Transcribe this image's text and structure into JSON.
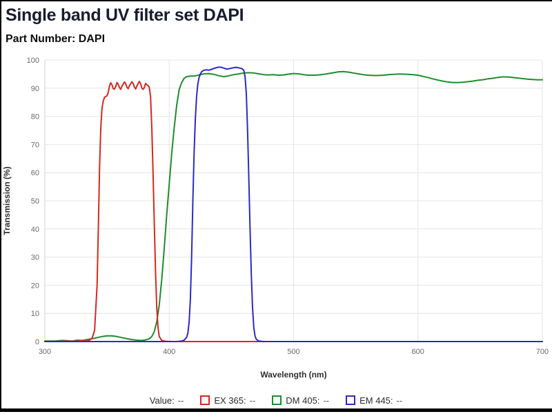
{
  "header": {
    "title": "Single band UV filter set DAPI",
    "subtitle": "Part Number: DAPI"
  },
  "legend": {
    "value_label": "Value:",
    "value": "--",
    "items": [
      {
        "label": "EX 365:",
        "value": "--",
        "color": "#d7271d"
      },
      {
        "label": "DM 405:",
        "value": "--",
        "color": "#1e8c2b"
      },
      {
        "label": "EM 445:",
        "value": "--",
        "color": "#2c28c9"
      }
    ]
  },
  "chart_data": {
    "type": "line",
    "title": "Single band UV filter set DAPI",
    "xlabel": "Wavelength (nm)",
    "ylabel": "Transmission (%)",
    "xlim": [
      300,
      700
    ],
    "ylim": [
      0,
      100
    ],
    "x_ticks": [
      300,
      400,
      500,
      600,
      700
    ],
    "y_ticks": [
      0,
      10,
      20,
      30,
      40,
      50,
      60,
      70,
      80,
      90,
      100
    ],
    "grid": true,
    "legend_position": "bottom",
    "grid_color": "#e4e4e4",
    "axis_color": "#d0d0d0",
    "tick_color": "#696969",
    "axis_label_color": "#2e2e2e",
    "series": [
      {
        "name": "DM 405",
        "color": "#1e8c2b",
        "points": [
          [
            300,
            0.2
          ],
          [
            308,
            0.2
          ],
          [
            314,
            0.4
          ],
          [
            318,
            0.3
          ],
          [
            322,
            0.2
          ],
          [
            326,
            0.5
          ],
          [
            330,
            0.4
          ],
          [
            334,
            0.7
          ],
          [
            338,
            1
          ],
          [
            342,
            1.4
          ],
          [
            346,
            1.8
          ],
          [
            350,
            2
          ],
          [
            354,
            2
          ],
          [
            358,
            1.8
          ],
          [
            362,
            1.4
          ],
          [
            366,
            1
          ],
          [
            370,
            0.7
          ],
          [
            374,
            0.5
          ],
          [
            378,
            0.4
          ],
          [
            381,
            0.6
          ],
          [
            384,
            1
          ],
          [
            386,
            1.8
          ],
          [
            388,
            3.5
          ],
          [
            390,
            7
          ],
          [
            392,
            13
          ],
          [
            394,
            22
          ],
          [
            396,
            33
          ],
          [
            398,
            45
          ],
          [
            400,
            56
          ],
          [
            402,
            67
          ],
          [
            404,
            76
          ],
          [
            406,
            84
          ],
          [
            408,
            89.5
          ],
          [
            410,
            92
          ],
          [
            412,
            93.5
          ],
          [
            414,
            94.1
          ],
          [
            417,
            94.3
          ],
          [
            420,
            94.3
          ],
          [
            424,
            94.7
          ],
          [
            428,
            95.1
          ],
          [
            432,
            95.2
          ],
          [
            436,
            94.9
          ],
          [
            440,
            94.4
          ],
          [
            444,
            94.1
          ],
          [
            448,
            94.4
          ],
          [
            452,
            94.8
          ],
          [
            456,
            95.1
          ],
          [
            460,
            95.4
          ],
          [
            464,
            95.5
          ],
          [
            468,
            95.4
          ],
          [
            472,
            95.1
          ],
          [
            476,
            94.8
          ],
          [
            480,
            94.7
          ],
          [
            484,
            94.8
          ],
          [
            488,
            94.6
          ],
          [
            492,
            94.7
          ],
          [
            496,
            95
          ],
          [
            500,
            95.2
          ],
          [
            504,
            95.1
          ],
          [
            508,
            94.8
          ],
          [
            512,
            94.6
          ],
          [
            516,
            94.6
          ],
          [
            520,
            94.7
          ],
          [
            524,
            94.9
          ],
          [
            528,
            95.2
          ],
          [
            532,
            95.5
          ],
          [
            536,
            95.8
          ],
          [
            540,
            95.9
          ],
          [
            544,
            95.7
          ],
          [
            548,
            95.4
          ],
          [
            552,
            95.1
          ],
          [
            556,
            94.8
          ],
          [
            560,
            94.6
          ],
          [
            564,
            94.5
          ],
          [
            568,
            94.5
          ],
          [
            572,
            94.6
          ],
          [
            576,
            94.8
          ],
          [
            580,
            94.9
          ],
          [
            584,
            95
          ],
          [
            588,
            95
          ],
          [
            592,
            94.9
          ],
          [
            596,
            94.8
          ],
          [
            600,
            94.6
          ],
          [
            604,
            94.2
          ],
          [
            608,
            93.8
          ],
          [
            612,
            93.3
          ],
          [
            616,
            92.9
          ],
          [
            620,
            92.5
          ],
          [
            624,
            92.2
          ],
          [
            628,
            92
          ],
          [
            632,
            92
          ],
          [
            636,
            92.1
          ],
          [
            640,
            92.3
          ],
          [
            644,
            92.5
          ],
          [
            648,
            92.8
          ],
          [
            652,
            93
          ],
          [
            656,
            93.3
          ],
          [
            660,
            93.5
          ],
          [
            664,
            93.8
          ],
          [
            668,
            94
          ],
          [
            672,
            94
          ],
          [
            676,
            93.8
          ],
          [
            680,
            93.6
          ],
          [
            684,
            93.4
          ],
          [
            688,
            93.2
          ],
          [
            692,
            93.1
          ],
          [
            696,
            93
          ],
          [
            700,
            93
          ]
        ]
      },
      {
        "name": "EX 365",
        "color": "#d7271d",
        "points": [
          [
            300,
            0
          ],
          [
            310,
            0
          ],
          [
            318,
            0.2
          ],
          [
            324,
            0.1
          ],
          [
            330,
            0.3
          ],
          [
            334,
            0.2
          ],
          [
            336,
            0.5
          ],
          [
            338,
            1.2
          ],
          [
            340,
            4
          ],
          [
            342,
            20
          ],
          [
            343,
            40
          ],
          [
            344,
            62
          ],
          [
            345,
            76
          ],
          [
            346,
            83
          ],
          [
            347,
            85.5
          ],
          [
            348,
            86.8
          ],
          [
            350,
            87.3
          ],
          [
            351,
            88.5
          ],
          [
            352,
            90.8
          ],
          [
            353,
            91.9
          ],
          [
            354,
            91.2
          ],
          [
            355,
            89.8
          ],
          [
            356,
            89.7
          ],
          [
            357,
            90.6
          ],
          [
            358,
            92
          ],
          [
            359,
            91.4
          ],
          [
            360,
            90.2
          ],
          [
            361,
            89.6
          ],
          [
            362,
            90.7
          ],
          [
            364,
            92.2
          ],
          [
            365,
            91.6
          ],
          [
            366,
            90.3
          ],
          [
            367,
            89.8
          ],
          [
            368,
            90.9
          ],
          [
            370,
            92.3
          ],
          [
            371,
            91.7
          ],
          [
            372,
            90.4
          ],
          [
            373,
            89.7
          ],
          [
            374,
            90.8
          ],
          [
            376,
            92.4
          ],
          [
            377,
            91.6
          ],
          [
            378,
            90
          ],
          [
            379,
            89.6
          ],
          [
            380,
            90.2
          ],
          [
            381,
            91.7
          ],
          [
            382,
            91.2
          ],
          [
            383,
            90.9
          ],
          [
            384,
            90.3
          ],
          [
            385,
            87
          ],
          [
            386,
            76
          ],
          [
            387,
            60
          ],
          [
            388,
            42
          ],
          [
            389,
            25
          ],
          [
            390,
            12
          ],
          [
            391,
            5
          ],
          [
            392,
            1.8
          ],
          [
            394,
            0.4
          ],
          [
            397,
            0.1
          ],
          [
            402,
            0
          ],
          [
            420,
            0
          ],
          [
            450,
            0
          ],
          [
            480,
            0
          ],
          [
            520,
            0
          ],
          [
            560,
            0
          ],
          [
            600,
            0
          ],
          [
            640,
            0
          ],
          [
            680,
            0
          ],
          [
            700,
            0
          ]
        ]
      },
      {
        "name": "EM 445",
        "color": "#2c28c9",
        "points": [
          [
            300,
            0
          ],
          [
            330,
            0
          ],
          [
            360,
            0
          ],
          [
            385,
            0
          ],
          [
            400,
            0
          ],
          [
            406,
            0
          ],
          [
            410,
            0.2
          ],
          [
            412,
            0.5
          ],
          [
            414,
            1.5
          ],
          [
            415,
            3
          ],
          [
            416,
            7
          ],
          [
            417,
            15
          ],
          [
            418,
            30
          ],
          [
            419,
            50
          ],
          [
            420,
            67
          ],
          [
            421,
            79
          ],
          [
            422,
            87
          ],
          [
            423,
            91.5
          ],
          [
            424,
            93.8
          ],
          [
            425,
            95
          ],
          [
            426,
            95.8
          ],
          [
            428,
            96.4
          ],
          [
            430,
            96.5
          ],
          [
            432,
            96.4
          ],
          [
            434,
            96.7
          ],
          [
            436,
            97
          ],
          [
            438,
            97.3
          ],
          [
            440,
            97.5
          ],
          [
            442,
            97.4
          ],
          [
            444,
            97.1
          ],
          [
            446,
            96.8
          ],
          [
            448,
            96.9
          ],
          [
            450,
            97.1
          ],
          [
            452,
            97.3
          ],
          [
            454,
            97.4
          ],
          [
            456,
            97.2
          ],
          [
            458,
            97
          ],
          [
            459,
            96.8
          ],
          [
            460,
            96.3
          ],
          [
            461,
            94
          ],
          [
            462,
            88
          ],
          [
            463,
            75
          ],
          [
            464,
            58
          ],
          [
            465,
            40
          ],
          [
            466,
            24
          ],
          [
            467,
            12
          ],
          [
            468,
            5
          ],
          [
            469,
            2
          ],
          [
            470,
            0.8
          ],
          [
            472,
            0.2
          ],
          [
            476,
            0
          ],
          [
            490,
            0
          ],
          [
            520,
            0
          ],
          [
            560,
            0
          ],
          [
            600,
            0
          ],
          [
            640,
            0
          ],
          [
            680,
            0
          ],
          [
            700,
            0
          ]
        ]
      }
    ]
  }
}
